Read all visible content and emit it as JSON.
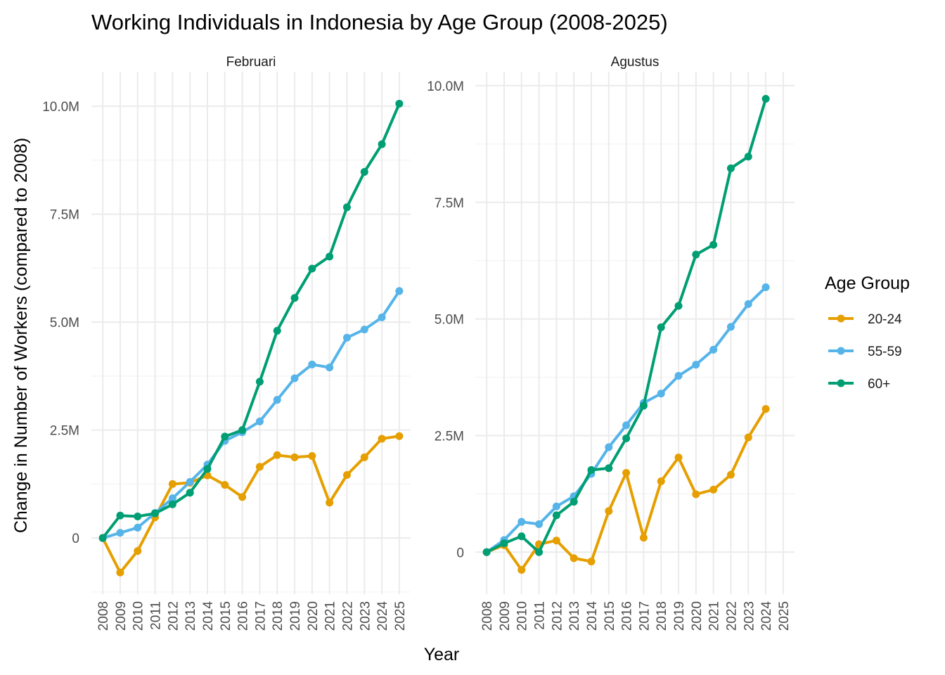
{
  "chart_data": {
    "type": "line",
    "title": "Working Individuals in Indonesia by Age Group (2008-2025)",
    "xlabel": "Year",
    "ylabel": "Change in Number of Workers (compared to 2008)",
    "legend": {
      "title": "Age Group",
      "placement": "right"
    },
    "grid": true,
    "x_ticks": [
      "2008",
      "2009",
      "2010",
      "2011",
      "2012",
      "2013",
      "2014",
      "2015",
      "2016",
      "2017",
      "2018",
      "2019",
      "2020",
      "2021",
      "2022",
      "2023",
      "2024",
      "2025"
    ],
    "colors": {
      "20-24": "#E69F00",
      "55-59": "#56B4E9",
      "60+": "#009E73"
    },
    "panels": [
      {
        "name": "Februari",
        "ylim": [
          -1300000,
          10800000
        ],
        "y_ticks": [
          0,
          2500000,
          5000000,
          7500000,
          10000000
        ],
        "y_tick_labels": [
          "0",
          "2.5M",
          "5.0M",
          "7.5M",
          "10.0M"
        ],
        "series": [
          {
            "name": "20-24",
            "x": [
              2008,
              2009,
              2010,
              2011,
              2012,
              2013,
              2014,
              2015,
              2016,
              2017,
              2018,
              2019,
              2020,
              2021,
              2022,
              2023,
              2024,
              2025
            ],
            "values": [
              0,
              -800000,
              -300000,
              480000,
              1250000,
              1280000,
              1450000,
              1230000,
              950000,
              1650000,
              1920000,
              1870000,
              1900000,
              820000,
              1460000,
              1870000,
              2300000,
              2360000
            ]
          },
          {
            "name": "55-59",
            "x": [
              2008,
              2009,
              2010,
              2011,
              2012,
              2013,
              2014,
              2015,
              2016,
              2017,
              2018,
              2019,
              2020,
              2021,
              2022,
              2023,
              2024,
              2025
            ],
            "values": [
              0,
              120000,
              240000,
              580000,
              920000,
              1300000,
              1700000,
              2250000,
              2450000,
              2700000,
              3200000,
              3700000,
              4020000,
              3950000,
              4640000,
              4830000,
              5110000,
              5720000
            ]
          },
          {
            "name": "60+",
            "x": [
              2008,
              2009,
              2010,
              2011,
              2012,
              2013,
              2014,
              2015,
              2016,
              2017,
              2018,
              2019,
              2020,
              2021,
              2022,
              2023,
              2024,
              2025
            ],
            "values": [
              0,
              520000,
              500000,
              570000,
              780000,
              1050000,
              1600000,
              2350000,
              2500000,
              3620000,
              4800000,
              5560000,
              6240000,
              6520000,
              7660000,
              8480000,
              9120000,
              10060000
            ]
          }
        ]
      },
      {
        "name": "Agustus",
        "ylim": [
          -900000,
          10300000
        ],
        "y_ticks": [
          0,
          2500000,
          5000000,
          7500000,
          10000000
        ],
        "y_tick_labels": [
          "0",
          "2.5M",
          "5.0M",
          "7.5M",
          "10.0M"
        ],
        "series": [
          {
            "name": "20-24",
            "x": [
              2008,
              2009,
              2010,
              2011,
              2012,
              2013,
              2014,
              2015,
              2016,
              2017,
              2018,
              2019,
              2020,
              2021,
              2022,
              2023,
              2024
            ],
            "values": [
              0,
              150000,
              -380000,
              170000,
              250000,
              -130000,
              -200000,
              880000,
              1700000,
              310000,
              1520000,
              2030000,
              1240000,
              1340000,
              1660000,
              2460000,
              3070000
            ]
          },
          {
            "name": "55-59",
            "x": [
              2008,
              2009,
              2010,
              2011,
              2012,
              2013,
              2014,
              2015,
              2016,
              2017,
              2018,
              2019,
              2020,
              2021,
              2022,
              2023,
              2024
            ],
            "values": [
              0,
              260000,
              650000,
              600000,
              980000,
              1200000,
              1680000,
              2250000,
              2720000,
              3200000,
              3400000,
              3780000,
              4020000,
              4340000,
              4830000,
              5320000,
              5680000
            ]
          },
          {
            "name": "60+",
            "x": [
              2008,
              2009,
              2010,
              2011,
              2012,
              2013,
              2014,
              2015,
              2016,
              2017,
              2018,
              2019,
              2020,
              2021,
              2022,
              2023,
              2024
            ],
            "values": [
              0,
              190000,
              340000,
              0,
              790000,
              1080000,
              1760000,
              1800000,
              2440000,
              3140000,
              4820000,
              5280000,
              6380000,
              6590000,
              8230000,
              8480000,
              9720000
            ]
          }
        ]
      }
    ]
  }
}
